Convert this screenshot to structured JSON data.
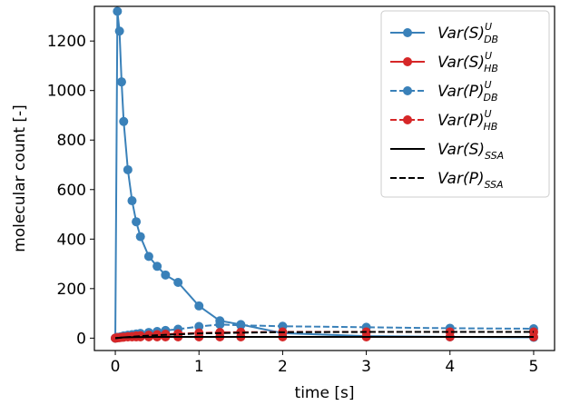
{
  "chart_data": {
    "type": "line",
    "xlabel": "time [s]",
    "ylabel": "molecular count [-]",
    "xlim": [
      -0.25,
      5.25
    ],
    "ylim": [
      -50,
      1340
    ],
    "xticks": [
      0,
      1,
      2,
      3,
      4,
      5
    ],
    "yticks": [
      0,
      200,
      400,
      600,
      800,
      1000,
      1200
    ],
    "grid": false,
    "legend_position": "top-right",
    "series": [
      {
        "name": "Var(S)^U_DB",
        "legend": {
          "base": "Var(S)",
          "sup": "U",
          "sub": "DB"
        },
        "color": "#3a81b9",
        "linestyle": "solid",
        "marker": true,
        "x": [
          0,
          0.025,
          0.05,
          0.075,
          0.1,
          0.15,
          0.2,
          0.25,
          0.3,
          0.4,
          0.5,
          0.6,
          0.75,
          1.0,
          1.25,
          1.5,
          2,
          3,
          4,
          5
        ],
        "y": [
          0,
          1320,
          1240,
          1035,
          875,
          680,
          555,
          470,
          410,
          330,
          290,
          255,
          225,
          130,
          70,
          55,
          20,
          8,
          5,
          3
        ]
      },
      {
        "name": "Var(S)^U_HB",
        "legend": {
          "base": "Var(S)",
          "sup": "U",
          "sub": "HB"
        },
        "color": "#d62728",
        "linestyle": "solid",
        "marker": true,
        "x": [
          0,
          0.025,
          0.05,
          0.075,
          0.1,
          0.15,
          0.2,
          0.25,
          0.3,
          0.4,
          0.5,
          0.6,
          0.75,
          1.0,
          1.25,
          1.5,
          2,
          3,
          4,
          5
        ],
        "y": [
          0,
          3,
          4,
          4,
          4,
          5,
          5,
          5,
          5,
          5,
          5,
          5,
          5,
          5,
          5,
          5,
          5,
          5,
          5,
          5
        ]
      },
      {
        "name": "Var(P)^U_DB",
        "legend": {
          "base": "Var(P)",
          "sup": "U",
          "sub": "DB"
        },
        "color": "#3a81b9",
        "linestyle": "dashed",
        "marker": true,
        "x": [
          0,
          0.025,
          0.05,
          0.075,
          0.1,
          0.15,
          0.2,
          0.25,
          0.3,
          0.4,
          0.5,
          0.6,
          0.75,
          1.0,
          1.25,
          1.5,
          2,
          3,
          4,
          5
        ],
        "y": [
          0,
          2,
          4,
          6,
          9,
          12,
          14,
          17,
          19,
          23,
          27,
          31,
          36,
          47,
          55,
          52,
          48,
          44,
          40,
          38
        ]
      },
      {
        "name": "Var(P)^U_HB",
        "legend": {
          "base": "Var(P)",
          "sup": "U",
          "sub": "HB"
        },
        "color": "#d62728",
        "linestyle": "dashed",
        "marker": true,
        "x": [
          0,
          0.025,
          0.05,
          0.075,
          0.1,
          0.15,
          0.2,
          0.25,
          0.3,
          0.4,
          0.5,
          0.6,
          0.75,
          1.0,
          1.25,
          1.5,
          2,
          3,
          4,
          5
        ],
        "y": [
          0,
          1,
          2,
          3,
          4,
          6,
          7,
          9,
          10,
          12,
          14,
          16,
          18,
          21,
          23,
          24,
          25,
          25,
          25,
          25
        ]
      },
      {
        "name": "Var(S)_SSA",
        "legend": {
          "base": "Var(S)",
          "sup": "",
          "sub": "SSA"
        },
        "color": "#000000",
        "linestyle": "solid",
        "marker": false,
        "x": [
          0,
          0.1,
          0.25,
          0.5,
          1.0,
          2,
          3,
          4,
          5
        ],
        "y": [
          0,
          3,
          4,
          5,
          5,
          5,
          5,
          5,
          5
        ]
      },
      {
        "name": "Var(P)_SSA",
        "legend": {
          "base": "Var(P)",
          "sup": "",
          "sub": "SSA"
        },
        "color": "#000000",
        "linestyle": "dashed",
        "marker": false,
        "x": [
          0,
          0.1,
          0.25,
          0.5,
          1.0,
          1.5,
          2,
          3,
          4,
          5
        ],
        "y": [
          0,
          3,
          7,
          12,
          19,
          22,
          24,
          25,
          25,
          25
        ]
      }
    ]
  }
}
